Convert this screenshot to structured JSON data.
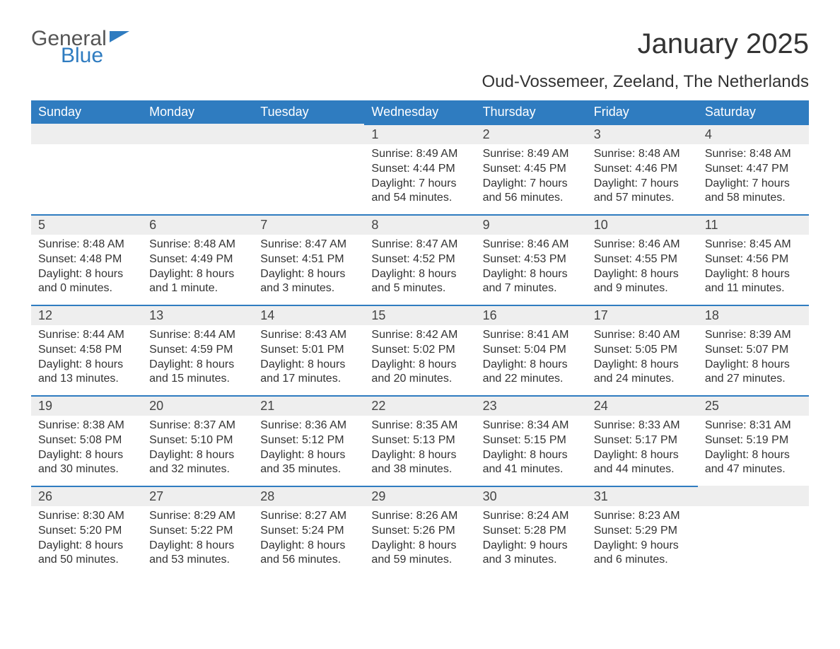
{
  "logo": {
    "line1": "General",
    "line2": "Blue"
  },
  "title": "January 2025",
  "location": "Oud-Vossemeer, Zeeland, The Netherlands",
  "colors": {
    "brand_blue": "#2f7cc0",
    "header_text": "#ffffff",
    "daynum_bg": "#eeeeee",
    "body_text": "#333333",
    "background": "#ffffff"
  },
  "weekdays": [
    "Sunday",
    "Monday",
    "Tuesday",
    "Wednesday",
    "Thursday",
    "Friday",
    "Saturday"
  ],
  "labels": {
    "sunrise": "Sunrise:",
    "sunset": "Sunset:",
    "daylight": "Daylight:"
  },
  "weeks": [
    [
      {
        "empty": true
      },
      {
        "empty": true
      },
      {
        "empty": true
      },
      {
        "day": "1",
        "sunrise": "8:49 AM",
        "sunset": "4:44 PM",
        "daylight1": "7 hours",
        "daylight2": "and 54 minutes."
      },
      {
        "day": "2",
        "sunrise": "8:49 AM",
        "sunset": "4:45 PM",
        "daylight1": "7 hours",
        "daylight2": "and 56 minutes."
      },
      {
        "day": "3",
        "sunrise": "8:48 AM",
        "sunset": "4:46 PM",
        "daylight1": "7 hours",
        "daylight2": "and 57 minutes."
      },
      {
        "day": "4",
        "sunrise": "8:48 AM",
        "sunset": "4:47 PM",
        "daylight1": "7 hours",
        "daylight2": "and 58 minutes."
      }
    ],
    [
      {
        "day": "5",
        "sunrise": "8:48 AM",
        "sunset": "4:48 PM",
        "daylight1": "8 hours",
        "daylight2": "and 0 minutes."
      },
      {
        "day": "6",
        "sunrise": "8:48 AM",
        "sunset": "4:49 PM",
        "daylight1": "8 hours",
        "daylight2": "and 1 minute."
      },
      {
        "day": "7",
        "sunrise": "8:47 AM",
        "sunset": "4:51 PM",
        "daylight1": "8 hours",
        "daylight2": "and 3 minutes."
      },
      {
        "day": "8",
        "sunrise": "8:47 AM",
        "sunset": "4:52 PM",
        "daylight1": "8 hours",
        "daylight2": "and 5 minutes."
      },
      {
        "day": "9",
        "sunrise": "8:46 AM",
        "sunset": "4:53 PM",
        "daylight1": "8 hours",
        "daylight2": "and 7 minutes."
      },
      {
        "day": "10",
        "sunrise": "8:46 AM",
        "sunset": "4:55 PM",
        "daylight1": "8 hours",
        "daylight2": "and 9 minutes."
      },
      {
        "day": "11",
        "sunrise": "8:45 AM",
        "sunset": "4:56 PM",
        "daylight1": "8 hours",
        "daylight2": "and 11 minutes."
      }
    ],
    [
      {
        "day": "12",
        "sunrise": "8:44 AM",
        "sunset": "4:58 PM",
        "daylight1": "8 hours",
        "daylight2": "and 13 minutes."
      },
      {
        "day": "13",
        "sunrise": "8:44 AM",
        "sunset": "4:59 PM",
        "daylight1": "8 hours",
        "daylight2": "and 15 minutes."
      },
      {
        "day": "14",
        "sunrise": "8:43 AM",
        "sunset": "5:01 PM",
        "daylight1": "8 hours",
        "daylight2": "and 17 minutes."
      },
      {
        "day": "15",
        "sunrise": "8:42 AM",
        "sunset": "5:02 PM",
        "daylight1": "8 hours",
        "daylight2": "and 20 minutes."
      },
      {
        "day": "16",
        "sunrise": "8:41 AM",
        "sunset": "5:04 PM",
        "daylight1": "8 hours",
        "daylight2": "and 22 minutes."
      },
      {
        "day": "17",
        "sunrise": "8:40 AM",
        "sunset": "5:05 PM",
        "daylight1": "8 hours",
        "daylight2": "and 24 minutes."
      },
      {
        "day": "18",
        "sunrise": "8:39 AM",
        "sunset": "5:07 PM",
        "daylight1": "8 hours",
        "daylight2": "and 27 minutes."
      }
    ],
    [
      {
        "day": "19",
        "sunrise": "8:38 AM",
        "sunset": "5:08 PM",
        "daylight1": "8 hours",
        "daylight2": "and 30 minutes."
      },
      {
        "day": "20",
        "sunrise": "8:37 AM",
        "sunset": "5:10 PM",
        "daylight1": "8 hours",
        "daylight2": "and 32 minutes."
      },
      {
        "day": "21",
        "sunrise": "8:36 AM",
        "sunset": "5:12 PM",
        "daylight1": "8 hours",
        "daylight2": "and 35 minutes."
      },
      {
        "day": "22",
        "sunrise": "8:35 AM",
        "sunset": "5:13 PM",
        "daylight1": "8 hours",
        "daylight2": "and 38 minutes."
      },
      {
        "day": "23",
        "sunrise": "8:34 AM",
        "sunset": "5:15 PM",
        "daylight1": "8 hours",
        "daylight2": "and 41 minutes."
      },
      {
        "day": "24",
        "sunrise": "8:33 AM",
        "sunset": "5:17 PM",
        "daylight1": "8 hours",
        "daylight2": "and 44 minutes."
      },
      {
        "day": "25",
        "sunrise": "8:31 AM",
        "sunset": "5:19 PM",
        "daylight1": "8 hours",
        "daylight2": "and 47 minutes."
      }
    ],
    [
      {
        "day": "26",
        "sunrise": "8:30 AM",
        "sunset": "5:20 PM",
        "daylight1": "8 hours",
        "daylight2": "and 50 minutes."
      },
      {
        "day": "27",
        "sunrise": "8:29 AM",
        "sunset": "5:22 PM",
        "daylight1": "8 hours",
        "daylight2": "and 53 minutes."
      },
      {
        "day": "28",
        "sunrise": "8:27 AM",
        "sunset": "5:24 PM",
        "daylight1": "8 hours",
        "daylight2": "and 56 minutes."
      },
      {
        "day": "29",
        "sunrise": "8:26 AM",
        "sunset": "5:26 PM",
        "daylight1": "8 hours",
        "daylight2": "and 59 minutes."
      },
      {
        "day": "30",
        "sunrise": "8:24 AM",
        "sunset": "5:28 PM",
        "daylight1": "9 hours",
        "daylight2": "and 3 minutes."
      },
      {
        "day": "31",
        "sunrise": "8:23 AM",
        "sunset": "5:29 PM",
        "daylight1": "9 hours",
        "daylight2": "and 6 minutes."
      },
      {
        "empty": true
      }
    ]
  ]
}
